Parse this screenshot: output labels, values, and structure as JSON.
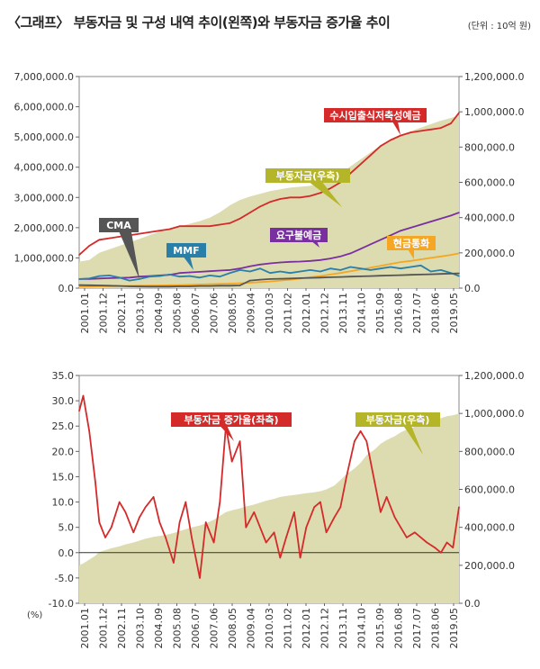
{
  "header": {
    "title": "〈그래프〉 부동자금 및 구성 내역 추이(왼쪽)와 부동자금 증가율 추이",
    "unit": "(단위 : 10억 원)"
  },
  "chart_data": [
    {
      "type": "line",
      "x_tick_labels": [
        "2001.01",
        "2001.12",
        "2002.11",
        "2003.10",
        "2004.09",
        "2005.08",
        "2006.07",
        "2007.06",
        "2008.05",
        "2009.04",
        "2010.03",
        "2011.02",
        "2012.01",
        "2012.12",
        "2013.11",
        "2014.10",
        "2015.09",
        "2016.08",
        "2017.07",
        "2018.06",
        "2019.05"
      ],
      "x": [
        2001.0,
        2001.5,
        2002.0,
        2002.5,
        2003.0,
        2003.5,
        2004.0,
        2004.5,
        2005.0,
        2005.5,
        2006.0,
        2006.5,
        2007.0,
        2007.5,
        2008.0,
        2008.5,
        2009.0,
        2009.5,
        2010.0,
        2010.5,
        2011.0,
        2011.5,
        2012.0,
        2012.5,
        2013.0,
        2013.5,
        2014.0,
        2014.5,
        2015.0,
        2015.5,
        2016.0,
        2016.5,
        2017.0,
        2017.5,
        2018.0,
        2018.5,
        2019.0,
        2019.5,
        2019.9
      ],
      "left_ylim": [
        0,
        7000000
      ],
      "left_yticks": [
        "7,000,000.0",
        "6,000,000.0",
        "5,000,000.0",
        "4,000,000.0",
        "3,000,000.0",
        "2,000,000.0",
        "1,000,000.0",
        "0.0"
      ],
      "right_ylim": [
        0,
        1200000
      ],
      "right_yticks": [
        "1,200,000.0",
        "1,000,000.0",
        "800,000.0",
        "600,000.0",
        "400,000.0",
        "200,000.0",
        "0.0"
      ],
      "series": [
        {
          "name": "부동자금(우측)",
          "axis": "right",
          "style": "area",
          "color": "#dcdcb0",
          "values": [
            150000,
            160000,
            200000,
            220000,
            240000,
            260000,
            280000,
            300000,
            320000,
            330000,
            350000,
            365000,
            380000,
            400000,
            430000,
            470000,
            500000,
            520000,
            535000,
            550000,
            560000,
            570000,
            575000,
            580000,
            590000,
            620000,
            650000,
            690000,
            730000,
            770000,
            810000,
            840000,
            870000,
            890000,
            910000,
            930000,
            950000,
            965000,
            980000
          ]
        },
        {
          "name": "수시입출식저축성예금",
          "axis": "left",
          "color": "#d42a2a",
          "values": [
            1100000,
            1400000,
            1600000,
            1650000,
            1700000,
            1750000,
            1800000,
            1850000,
            1900000,
            1950000,
            2050000,
            2050000,
            2050000,
            2050000,
            2100000,
            2150000,
            2300000,
            2500000,
            2700000,
            2850000,
            2950000,
            3000000,
            3000000,
            3050000,
            3150000,
            3300000,
            3500000,
            3800000,
            4100000,
            4400000,
            4700000,
            4900000,
            5050000,
            5150000,
            5200000,
            5250000,
            5300000,
            5450000,
            5800000
          ]
        },
        {
          "name": "요구불예금",
          "axis": "left",
          "color": "#7a2fa0",
          "values": [
            300000,
            300000,
            320000,
            330000,
            340000,
            350000,
            380000,
            400000,
            420000,
            440000,
            500000,
            520000,
            540000,
            560000,
            580000,
            600000,
            650000,
            720000,
            780000,
            820000,
            850000,
            870000,
            880000,
            900000,
            930000,
            980000,
            1050000,
            1150000,
            1300000,
            1450000,
            1600000,
            1750000,
            1900000,
            2000000,
            2100000,
            2200000,
            2300000,
            2400000,
            2500000
          ]
        },
        {
          "name": "현금통화",
          "axis": "left",
          "color": "#f5a623",
          "values": [
            50000,
            55000,
            60000,
            65000,
            70000,
            75000,
            80000,
            85000,
            90000,
            95000,
            100000,
            110000,
            120000,
            130000,
            140000,
            150000,
            160000,
            180000,
            200000,
            220000,
            250000,
            280000,
            320000,
            360000,
            400000,
            450000,
            500000,
            560000,
            620000,
            680000,
            740000,
            800000,
            860000,
            900000,
            950000,
            1000000,
            1050000,
            1100000,
            1150000
          ]
        },
        {
          "name": "MMF",
          "axis": "left",
          "color": "#2a7fa8",
          "values": [
            300000,
            320000,
            400000,
            420000,
            350000,
            250000,
            300000,
            380000,
            400000,
            450000,
            380000,
            400000,
            350000,
            420000,
            380000,
            500000,
            600000,
            550000,
            650000,
            500000,
            550000,
            500000,
            550000,
            600000,
            550000,
            650000,
            600000,
            700000,
            650000,
            600000,
            650000,
            700000,
            650000,
            700000,
            750000,
            550000,
            600000,
            500000,
            400000
          ]
        },
        {
          "name": "CMA",
          "axis": "left",
          "color": "#555555",
          "values": [
            100000,
            95000,
            90000,
            80000,
            70000,
            60000,
            55000,
            50000,
            50000,
            50000,
            60000,
            60000,
            70000,
            70000,
            80000,
            80000,
            90000,
            250000,
            280000,
            300000,
            310000,
            320000,
            330000,
            340000,
            350000,
            360000,
            370000,
            380000,
            390000,
            400000,
            410000,
            420000,
            430000,
            440000,
            450000,
            460000,
            470000,
            480000,
            490000
          ]
        }
      ],
      "annotations": [
        {
          "text": "수시입출식저축성예금",
          "bg": "#d42a2a",
          "fg": "#ffffff"
        },
        {
          "text": "부동자금(우측)",
          "bg": "#b5b52a",
          "fg": "#ffffff"
        },
        {
          "text": "CMA",
          "bg": "#555555",
          "fg": "#ffffff"
        },
        {
          "text": "MMF",
          "bg": "#2a7fa8",
          "fg": "#ffffff"
        },
        {
          "text": "요구불예금",
          "bg": "#7a2fa0",
          "fg": "#ffffff"
        },
        {
          "text": "현금통화",
          "bg": "#f5a623",
          "fg": "#ffffff"
        }
      ]
    },
    {
      "type": "line",
      "x_tick_labels": [
        "2001.01",
        "2001.12",
        "2002.11",
        "2003.10",
        "2004.09",
        "2005.08",
        "2006.07",
        "2007.06",
        "2008.05",
        "2009.04",
        "2010.03",
        "2011.02",
        "2012.01",
        "2012.12",
        "2013.11",
        "2014.10",
        "2015.09",
        "2016.08",
        "2017.07",
        "2018.06",
        "2019.05"
      ],
      "x": [
        2001.0,
        2001.2,
        2001.5,
        2001.8,
        2002.0,
        2002.3,
        2002.6,
        2003.0,
        2003.3,
        2003.7,
        2004.0,
        2004.3,
        2004.7,
        2005.0,
        2005.3,
        2005.7,
        2006.0,
        2006.3,
        2006.6,
        2007.0,
        2007.3,
        2007.7,
        2008.0,
        2008.3,
        2008.6,
        2009.0,
        2009.3,
        2009.7,
        2010.0,
        2010.3,
        2010.7,
        2011.0,
        2011.3,
        2011.7,
        2012.0,
        2012.3,
        2012.7,
        2013.0,
        2013.3,
        2013.7,
        2014.0,
        2014.3,
        2014.7,
        2015.0,
        2015.3,
        2015.7,
        2016.0,
        2016.3,
        2016.7,
        2017.0,
        2017.3,
        2017.7,
        2018.0,
        2018.3,
        2018.7,
        2019.0,
        2019.3,
        2019.6,
        2019.9
      ],
      "left_ylim": [
        -10,
        35
      ],
      "left_yticks": [
        "35.0",
        "30.0",
        "25.0",
        "20.0",
        "15.0",
        "10.0",
        "5.0",
        "0.0",
        "-5.0",
        "-10.0"
      ],
      "left_unit": "(%)",
      "right_ylim": [
        0,
        1200000
      ],
      "right_yticks": [
        "1,200,000.0",
        "1,000,000.0",
        "800,000.0",
        "600,000.0",
        "400,000.0",
        "200,000.0",
        "0.0"
      ],
      "series": [
        {
          "name": "부동자금(우측)",
          "axis": "right",
          "style": "area",
          "color": "#dcdcb0",
          "values": [
            200000,
            210000,
            230000,
            250000,
            270000,
            280000,
            290000,
            300000,
            310000,
            320000,
            330000,
            340000,
            350000,
            355000,
            360000,
            370000,
            380000,
            390000,
            400000,
            410000,
            420000,
            440000,
            460000,
            480000,
            490000,
            500000,
            510000,
            520000,
            530000,
            540000,
            550000,
            560000,
            565000,
            570000,
            575000,
            580000,
            585000,
            590000,
            600000,
            620000,
            650000,
            680000,
            710000,
            740000,
            780000,
            810000,
            840000,
            860000,
            880000,
            900000,
            915000,
            930000,
            945000,
            955000,
            965000,
            975000,
            985000,
            990000,
            1000000
          ]
        },
        {
          "name": "부동자금 증가율(좌측)",
          "axis": "left",
          "color": "#d42a2a",
          "values": [
            28,
            31,
            24,
            14,
            6,
            3,
            5,
            10,
            8,
            4,
            7,
            9,
            11,
            6,
            3,
            -2,
            6,
            10,
            3,
            -5,
            6,
            2,
            10,
            25,
            18,
            22,
            5,
            8,
            5,
            2,
            4,
            -1,
            3,
            8,
            -1,
            5,
            9,
            10,
            4,
            7,
            9,
            15,
            22,
            24,
            22,
            14,
            8,
            11,
            7,
            5,
            3,
            4,
            3,
            2,
            1,
            0,
            2,
            1,
            9
          ]
        }
      ],
      "annotations": [
        {
          "text": "부동자금 증가율(좌측)",
          "bg": "#d42a2a",
          "fg": "#ffffff"
        },
        {
          "text": "부동자금(우측)",
          "bg": "#b5b52a",
          "fg": "#ffffff"
        }
      ]
    }
  ]
}
